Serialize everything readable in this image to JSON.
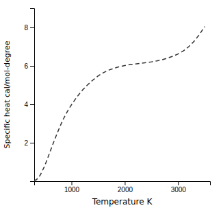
{
  "chart_data": {
    "type": "line",
    "xlabel": "Temperature K",
    "ylabel": "Specific heat cal/mol-degree",
    "x": [
      300,
      340,
      380,
      420,
      460,
      500,
      550,
      600,
      650,
      700,
      750,
      800,
      850,
      900,
      950,
      1000,
      1100,
      1200,
      1300,
      1400,
      1500,
      1600,
      1700,
      1800,
      1900,
      2000,
      2100,
      2200,
      2300,
      2400,
      2500,
      2600,
      2700,
      2800,
      2900,
      3000,
      3100,
      3200,
      3300,
      3400,
      3500
    ],
    "values": [
      0.02,
      0.08,
      0.18,
      0.35,
      0.58,
      0.82,
      1.18,
      1.55,
      1.92,
      2.28,
      2.62,
      2.95,
      3.25,
      3.52,
      3.76,
      3.98,
      4.38,
      4.72,
      5.01,
      5.26,
      5.48,
      5.65,
      5.78,
      5.88,
      5.96,
      6.02,
      6.07,
      6.1,
      6.13,
      6.17,
      6.21,
      6.26,
      6.32,
      6.4,
      6.5,
      6.62,
      6.78,
      7.0,
      7.28,
      7.63,
      8.05
    ],
    "color": "#333333",
    "line_style": "dashed",
    "xlim": [
      300,
      3600
    ],
    "ylim": [
      0,
      9
    ],
    "xticks": [
      1000,
      2000,
      3000
    ],
    "yticks": [
      2,
      4,
      6,
      8
    ],
    "grid": false
  }
}
